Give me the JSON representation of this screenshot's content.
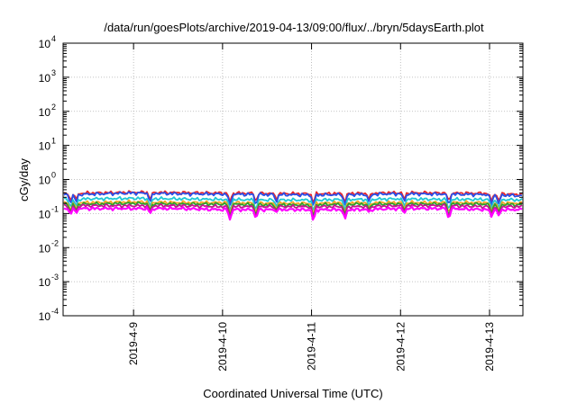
{
  "chart_data": {
    "type": "line",
    "title": "/data/run/goesPlots/archive/2019-04-13/09:00/flux/../bryn/5daysEarth.plot",
    "xlabel": "Coordinated Universal Time (UTC)",
    "ylabel": "cGy/day",
    "y_scale": "log",
    "ylim": [
      0.0001,
      10000
    ],
    "xlim": [
      "2019-04-08T05:00",
      "2019-04-13T09:00"
    ],
    "grid": true,
    "legend": "none",
    "y_ticks": [
      {
        "base": "10",
        "exp": "4",
        "value": 10000
      },
      {
        "base": "10",
        "exp": "3",
        "value": 1000
      },
      {
        "base": "10",
        "exp": "2",
        "value": 100
      },
      {
        "base": "10",
        "exp": "1",
        "value": 10
      },
      {
        "base": "10",
        "exp": "0",
        "value": 1
      },
      {
        "base": "10",
        "exp": "-1",
        "value": 0.1
      },
      {
        "base": "10",
        "exp": "-2",
        "value": 0.01
      },
      {
        "base": "10",
        "exp": "-3",
        "value": 0.001
      },
      {
        "base": "10",
        "exp": "-4",
        "value": 0.0001
      }
    ],
    "x_ticks": [
      {
        "label": "2019-4-9",
        "value": "2019-04-09T00:00"
      },
      {
        "label": "2019-4-10",
        "value": "2019-04-10T00:00"
      },
      {
        "label": "2019-4-11",
        "value": "2019-04-11T00:00"
      },
      {
        "label": "2019-4-12",
        "value": "2019-04-12T00:00"
      },
      {
        "label": "2019-4-13",
        "value": "2019-04-13T00:00"
      }
    ],
    "x": [
      "2019-04-08T05:00",
      "2019-04-08T12:00",
      "2019-04-09T00:00",
      "2019-04-09T12:00",
      "2019-04-10T00:00",
      "2019-04-10T12:00",
      "2019-04-11T00:00",
      "2019-04-11T12:00",
      "2019-04-12T00:00",
      "2019-04-12T12:00",
      "2019-04-13T00:00",
      "2019-04-13T09:00"
    ],
    "series": [
      {
        "color": "#e8262a",
        "values": [
          0.38,
          0.4,
          0.42,
          0.41,
          0.4,
          0.39,
          0.38,
          0.39,
          0.41,
          0.4,
          0.39,
          0.36
        ]
      },
      {
        "color": "#2a4fe8",
        "values": [
          0.35,
          0.37,
          0.4,
          0.38,
          0.37,
          0.36,
          0.35,
          0.36,
          0.38,
          0.37,
          0.36,
          0.33
        ]
      },
      {
        "color": "#1fc7d4",
        "values": [
          0.26,
          0.27,
          0.28,
          0.27,
          0.26,
          0.25,
          0.25,
          0.26,
          0.27,
          0.26,
          0.26,
          0.25
        ]
      },
      {
        "color": "#f5a623",
        "values": [
          0.21,
          0.21,
          0.22,
          0.21,
          0.21,
          0.2,
          0.2,
          0.21,
          0.21,
          0.21,
          0.21,
          0.2
        ]
      },
      {
        "color": "#2ca02c",
        "values": [
          0.19,
          0.19,
          0.2,
          0.19,
          0.19,
          0.18,
          0.18,
          0.19,
          0.19,
          0.19,
          0.19,
          0.18
        ]
      },
      {
        "color": "#c2188f",
        "values": [
          0.17,
          0.17,
          0.17,
          0.17,
          0.16,
          0.16,
          0.16,
          0.16,
          0.17,
          0.17,
          0.16,
          0.16
        ]
      },
      {
        "color": "#ff00ff",
        "values": [
          0.14,
          0.14,
          0.14,
          0.14,
          0.13,
          0.13,
          0.13,
          0.13,
          0.14,
          0.14,
          0.13,
          0.13
        ]
      }
    ],
    "dips": [
      {
        "x": "2019-04-08T07:00",
        "min": 0.09
      },
      {
        "x": "2019-04-08T08:30",
        "min": 0.1
      },
      {
        "x": "2019-04-09T04:30",
        "min": 0.1
      },
      {
        "x": "2019-04-10T02:00",
        "min": 0.065
      },
      {
        "x": "2019-04-10T09:00",
        "min": 0.065
      },
      {
        "x": "2019-04-10T14:30",
        "min": 0.11
      },
      {
        "x": "2019-04-11T00:30",
        "min": 0.055
      },
      {
        "x": "2019-04-11T09:00",
        "min": 0.065
      },
      {
        "x": "2019-04-11T15:30",
        "min": 0.11
      },
      {
        "x": "2019-04-12T01:00",
        "min": 0.1
      },
      {
        "x": "2019-04-12T13:00",
        "min": 0.065
      },
      {
        "x": "2019-04-13T00:30",
        "min": 0.08
      },
      {
        "x": "2019-04-13T02:30",
        "min": 0.085
      }
    ]
  }
}
